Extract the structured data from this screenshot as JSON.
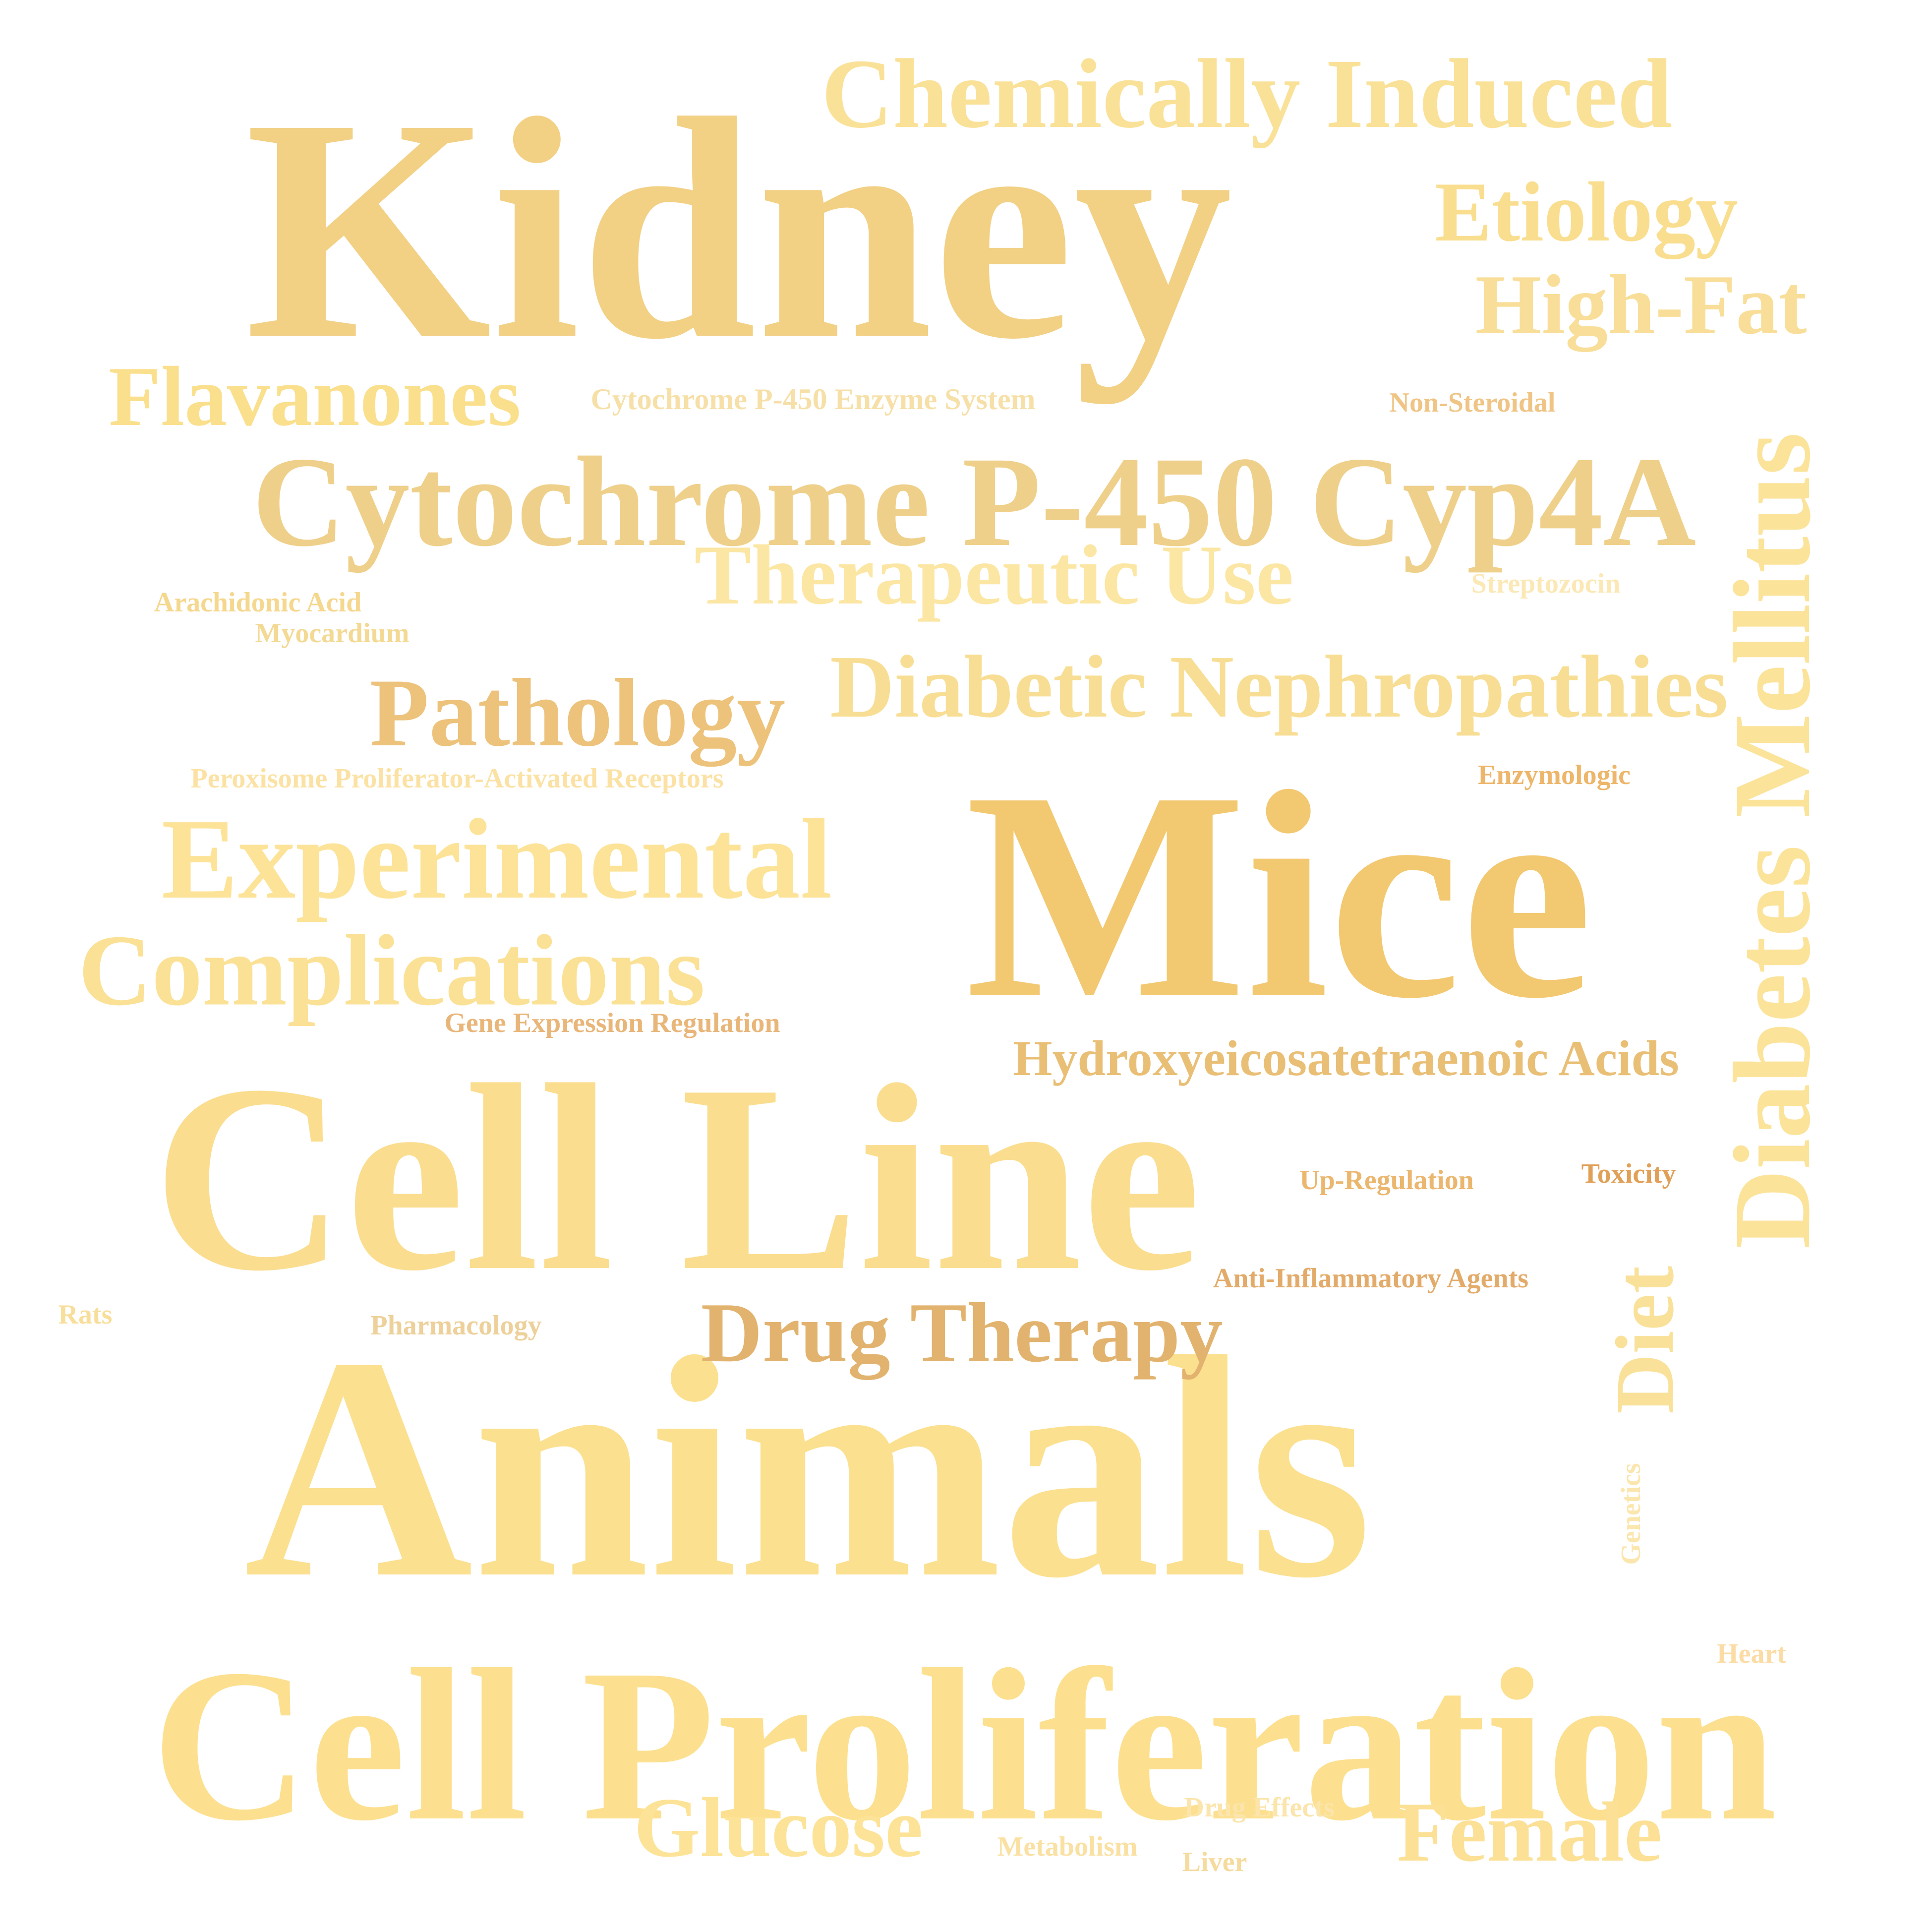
{
  "words": [
    {
      "text": "Kidney",
      "color": "#F2D084"
    },
    {
      "text": "Mice",
      "color": "#F2C870"
    },
    {
      "text": "Animals",
      "color": "#FBE08F"
    },
    {
      "text": "Cell Line",
      "color": "#FADD8E"
    },
    {
      "text": "Cell Proliferation",
      "color": "#FCE08F"
    },
    {
      "text": "Cytochrome P-450 Cyp4A",
      "color": "#EFD08A"
    },
    {
      "text": "Chemically Induced",
      "color": "#FAE198"
    },
    {
      "text": "Diabetes Mellitus",
      "color": "#FBE39A"
    },
    {
      "text": "Experimental",
      "color": "#FCE397"
    },
    {
      "text": "Complications",
      "color": "#FBE195"
    },
    {
      "text": "Diabetic Nephropathies",
      "color": "#F8DE94"
    },
    {
      "text": "Pathology",
      "color": "#EDC27B"
    },
    {
      "text": "Therapeutic Use",
      "color": "#FCE6A3"
    },
    {
      "text": "Flavanones",
      "color": "#FADF8C"
    },
    {
      "text": "Etiology",
      "color": "#F9DE8F"
    },
    {
      "text": "High-Fat",
      "color": "#F8DE98"
    },
    {
      "text": "Drug Therapy",
      "color": "#E2B36E"
    },
    {
      "text": "Glucose",
      "color": "#FCE397"
    },
    {
      "text": "Female",
      "color": "#FBE095"
    },
    {
      "text": "Hydroxyeicosatetraenoic Acids",
      "color": "#E9BF76"
    },
    {
      "text": "Diet",
      "color": "#FAE19A"
    },
    {
      "text": "Cytochrome P-450 Enzyme System",
      "color": "#F6E0A8"
    },
    {
      "text": "Non-Steroidal",
      "color": "#EFC484"
    },
    {
      "text": "Streptozocin",
      "color": "#FBE8B5"
    },
    {
      "text": "Arachidonic Acid",
      "color": "#F5D78E"
    },
    {
      "text": "Myocardium",
      "color": "#F3D993"
    },
    {
      "text": "Peroxisome Proliferator-Activated Receptors",
      "color": "#FBE2A4"
    },
    {
      "text": "Enzymologic",
      "color": "#EDB66A"
    },
    {
      "text": "Gene Expression Regulation",
      "color": "#E9B67A"
    },
    {
      "text": "Up-Regulation",
      "color": "#EBB66E"
    },
    {
      "text": "Toxicity",
      "color": "#E1A057"
    },
    {
      "text": "Anti-Inflammatory Agents",
      "color": "#E3AB6A"
    },
    {
      "text": "Rats",
      "color": "#F8DE9B"
    },
    {
      "text": "Pharmacology",
      "color": "#EDD09A"
    },
    {
      "text": "Genetics",
      "color": "#FBE6AE"
    },
    {
      "text": "Heart",
      "color": "#FCDCA5"
    },
    {
      "text": "Drug Effects",
      "color": "#FBE5AC"
    },
    {
      "text": "Metabolism",
      "color": "#FAE1A3"
    },
    {
      "text": "Liver",
      "color": "#F5DB9E"
    }
  ]
}
